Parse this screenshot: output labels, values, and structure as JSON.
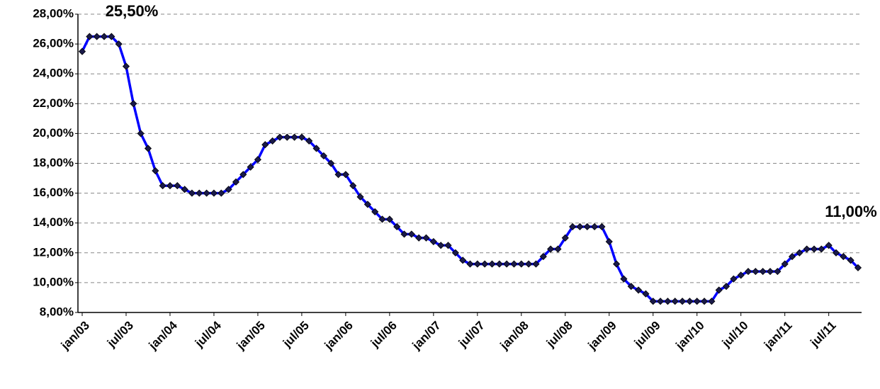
{
  "chart_data": {
    "type": "line",
    "categories": [
      "jan/03",
      null,
      null,
      null,
      null,
      null,
      "jul/03",
      null,
      null,
      null,
      null,
      null,
      "jan/04",
      null,
      null,
      null,
      null,
      null,
      "jul/04",
      null,
      null,
      null,
      null,
      null,
      "jan/05",
      null,
      null,
      null,
      null,
      null,
      "jul/05",
      null,
      null,
      null,
      null,
      null,
      "jan/06",
      null,
      null,
      null,
      null,
      null,
      "jul/06",
      null,
      null,
      null,
      null,
      null,
      "jan/07",
      null,
      null,
      null,
      null,
      null,
      "jul/07",
      null,
      null,
      null,
      null,
      null,
      "jan/08",
      null,
      null,
      null,
      null,
      null,
      "jul/08",
      null,
      null,
      null,
      null,
      null,
      "jan/09",
      null,
      null,
      null,
      null,
      null,
      "jul/09",
      null,
      null,
      null,
      null,
      null,
      "jan/10",
      null,
      null,
      null,
      null,
      null,
      "jul/10",
      null,
      null,
      null,
      null,
      null,
      "jan/11",
      null,
      null,
      null,
      null,
      null,
      "jul/11",
      null,
      null,
      null,
      null
    ],
    "series": [
      {
        "name": null,
        "color": "#0000ff",
        "marker_color": "#1a1a4a",
        "values": [
          25.5,
          26.5,
          26.5,
          26.5,
          26.5,
          26.0,
          24.5,
          22.0,
          20.0,
          19.0,
          17.5,
          16.5,
          16.5,
          16.5,
          16.25,
          16.0,
          16.0,
          16.0,
          16.0,
          16.0,
          16.25,
          16.75,
          17.25,
          17.75,
          18.25,
          19.25,
          19.5,
          19.75,
          19.75,
          19.75,
          19.75,
          19.5,
          19.0,
          18.5,
          18.0,
          17.25,
          17.25,
          16.5,
          15.75,
          15.25,
          14.75,
          14.25,
          14.25,
          13.75,
          13.25,
          13.25,
          13.0,
          13.0,
          12.75,
          12.5,
          12.5,
          12.0,
          11.5,
          11.25,
          11.25,
          11.25,
          11.25,
          11.25,
          11.25,
          11.25,
          11.25,
          11.25,
          11.25,
          11.75,
          12.25,
          12.25,
          13.0,
          13.75,
          13.75,
          13.75,
          13.75,
          13.75,
          12.75,
          11.25,
          10.25,
          9.75,
          9.5,
          9.25,
          8.75,
          8.75,
          8.75,
          8.75,
          8.75,
          8.75,
          8.75,
          8.75,
          8.75,
          9.5,
          9.75,
          10.25,
          10.5,
          10.75,
          10.75,
          10.75,
          10.75,
          10.75,
          11.25,
          11.75,
          12.0,
          12.25,
          12.25,
          12.25,
          12.5,
          12.0,
          11.75,
          11.5,
          11.0
        ]
      }
    ],
    "annotations": [
      {
        "text": "25,50%",
        "index": 0
      },
      {
        "text": "11,00%",
        "index": 106
      }
    ],
    "ylim": [
      8,
      28
    ],
    "yticks": [
      {
        "value": 8,
        "label": "8,00%"
      },
      {
        "value": 10,
        "label": "10,00%"
      },
      {
        "value": 12,
        "label": "12,00%"
      },
      {
        "value": 14,
        "label": "14,00%"
      },
      {
        "value": 16,
        "label": "16,00%"
      },
      {
        "value": 18,
        "label": "18,00%"
      },
      {
        "value": 20,
        "label": "20,00%"
      },
      {
        "value": 22,
        "label": "22,00%"
      },
      {
        "value": 24,
        "label": "24,00%"
      },
      {
        "value": 26,
        "label": "26,00%"
      },
      {
        "value": 28,
        "label": "28,00%"
      }
    ],
    "grid": true
  }
}
